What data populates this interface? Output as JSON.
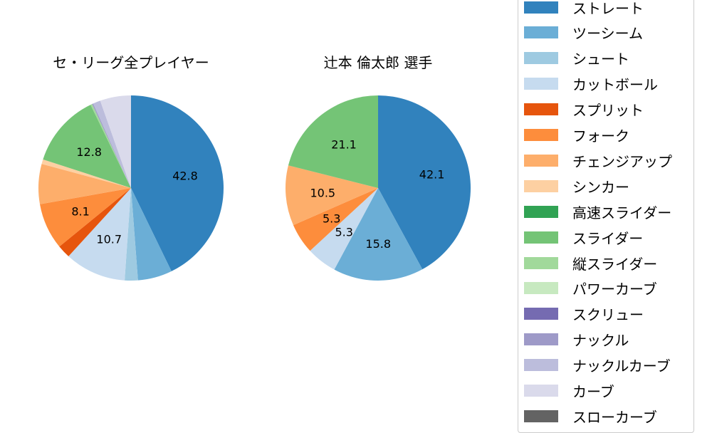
{
  "chart_data": [
    {
      "type": "pie",
      "title": "セ・リーグ全プレイヤー",
      "center": [
        184,
        264
      ],
      "radius": 130,
      "start_angle": 90,
      "clockwise": true,
      "slices": [
        {
          "label": "ストレート",
          "value": 42.8,
          "show_label": true
        },
        {
          "label": "ツーシーム",
          "value": 6.0,
          "show_label": false
        },
        {
          "label": "シュート",
          "value": 2.3,
          "show_label": false
        },
        {
          "label": "カットボール",
          "value": 10.7,
          "show_label": true
        },
        {
          "label": "スプリット",
          "value": 2.3,
          "show_label": false
        },
        {
          "label": "フォーク",
          "value": 8.1,
          "show_label": true
        },
        {
          "label": "チェンジアップ",
          "value": 7.0,
          "show_label": false
        },
        {
          "label": "シンカー",
          "value": 0.8,
          "show_label": false
        },
        {
          "label": "スライダー",
          "value": 12.8,
          "show_label": true
        },
        {
          "label": "縦スライダー",
          "value": 0.3,
          "show_label": false
        },
        {
          "label": "ナックル",
          "value": 0.2,
          "show_label": false
        },
        {
          "label": "ナックルカーブ",
          "value": 1.3,
          "show_label": false
        },
        {
          "label": "カーブ",
          "value": 5.4,
          "show_label": false
        }
      ]
    },
    {
      "type": "pie",
      "title": "辻本 倫太郎  選手",
      "center": [
        531,
        264
      ],
      "radius": 130,
      "start_angle": 90,
      "clockwise": true,
      "slices": [
        {
          "label": "ストレート",
          "value": 42.1,
          "show_label": true
        },
        {
          "label": "ツーシーム",
          "value": 15.8,
          "show_label": true
        },
        {
          "label": "カットボール",
          "value": 5.3,
          "show_label": true
        },
        {
          "label": "フォーク",
          "value": 5.3,
          "show_label": true
        },
        {
          "label": "チェンジアップ",
          "value": 10.5,
          "show_label": true
        },
        {
          "label": "スライダー",
          "value": 21.1,
          "show_label": true
        }
      ]
    }
  ],
  "legend": {
    "items": [
      {
        "label": "ストレート",
        "color": "#3182bd"
      },
      {
        "label": "ツーシーム",
        "color": "#6baed6"
      },
      {
        "label": "シュート",
        "color": "#9ecae1"
      },
      {
        "label": "カットボール",
        "color": "#c6dbef"
      },
      {
        "label": "スプリット",
        "color": "#e6550d"
      },
      {
        "label": "フォーク",
        "color": "#fd8d3c"
      },
      {
        "label": "チェンジアップ",
        "color": "#fdae6b"
      },
      {
        "label": "シンカー",
        "color": "#fdd0a2"
      },
      {
        "label": "高速スライダー",
        "color": "#31a354"
      },
      {
        "label": "スライダー",
        "color": "#74c476"
      },
      {
        "label": "縦スライダー",
        "color": "#a1d99b"
      },
      {
        "label": "パワーカーブ",
        "color": "#c7e9c0"
      },
      {
        "label": "スクリュー",
        "color": "#756bb1"
      },
      {
        "label": "ナックル",
        "color": "#9e9ac8"
      },
      {
        "label": "ナックルカーブ",
        "color": "#bcbddc"
      },
      {
        "label": "カーブ",
        "color": "#dadaeb"
      },
      {
        "label": "スローカーブ",
        "color": "#636363"
      }
    ]
  },
  "titles": {
    "left": "セ・リーグ全プレイヤー",
    "right": "辻本 倫太郎  選手"
  }
}
